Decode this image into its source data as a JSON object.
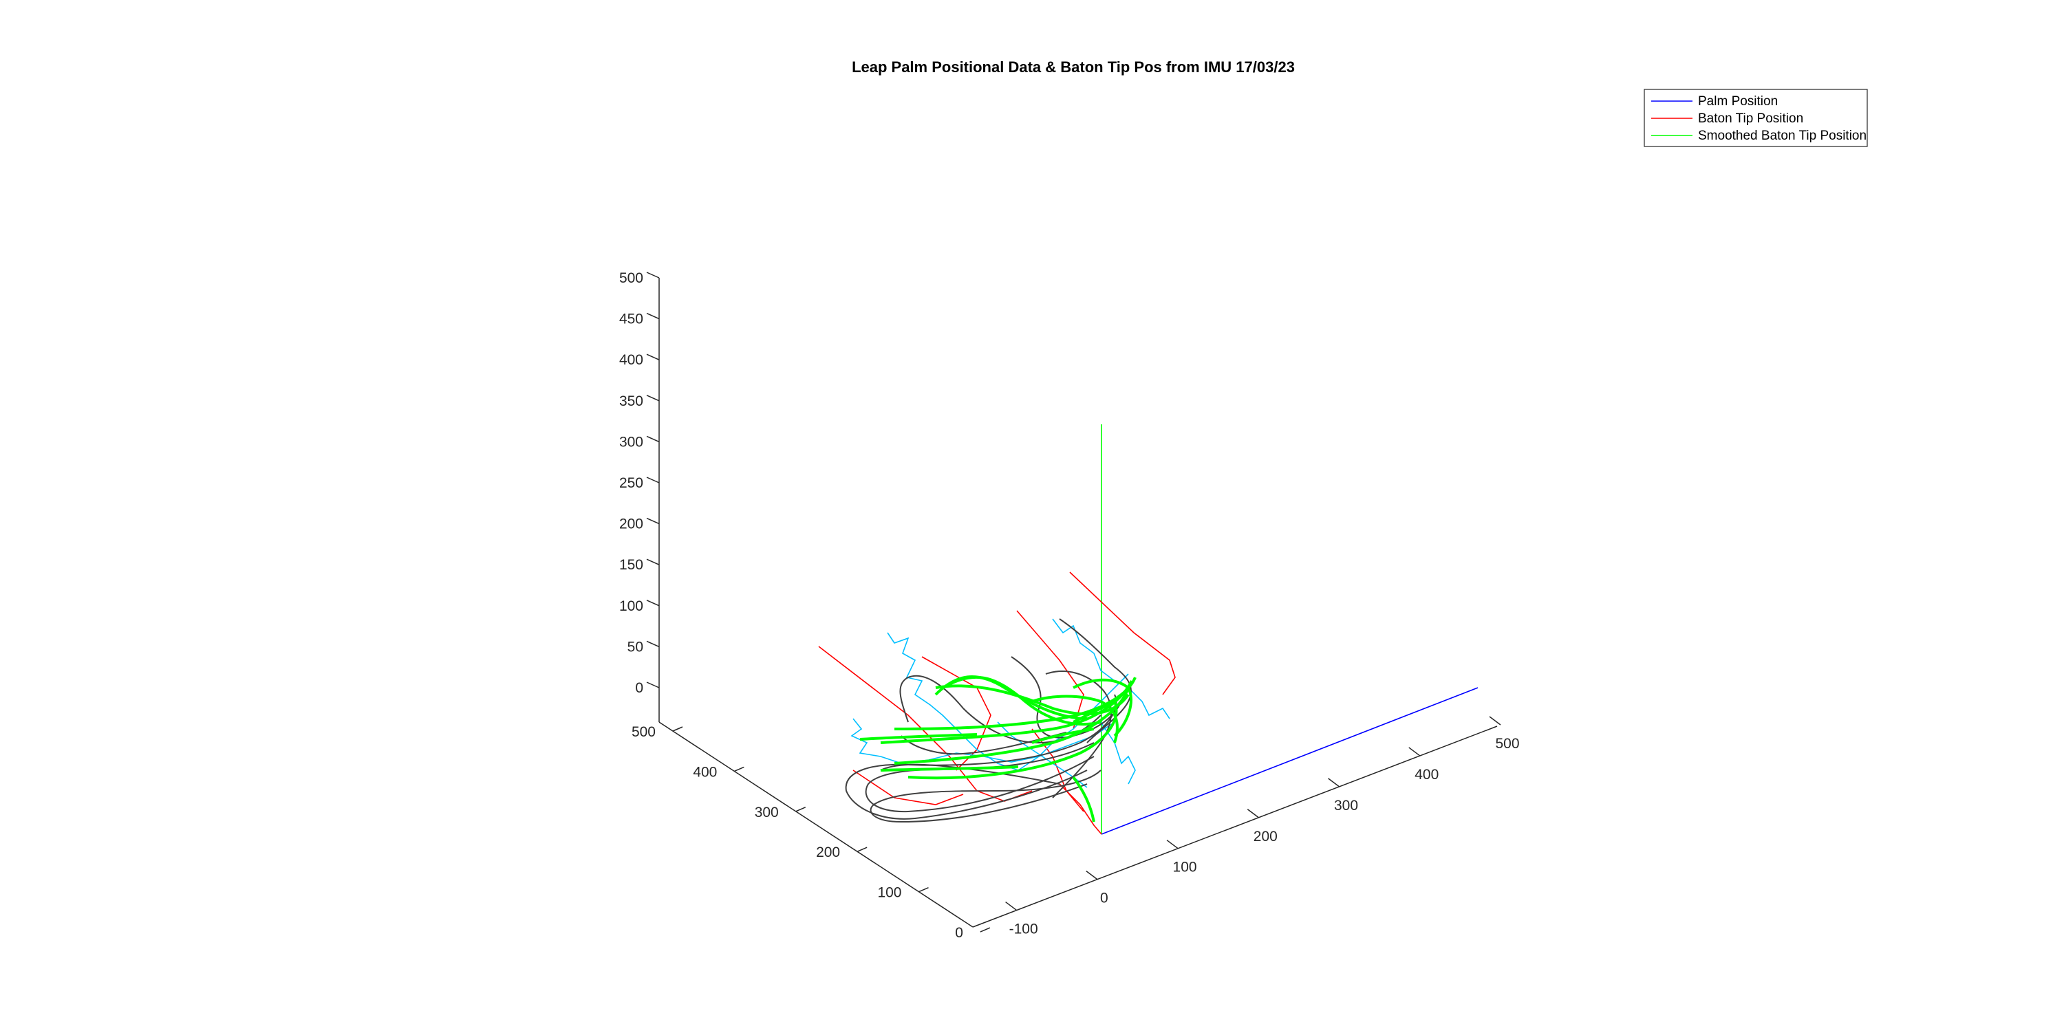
{
  "chart_data": {
    "type": "line3d",
    "title": "Leap Palm Positional Data & Baton Tip Pos from IMU 17/03/23",
    "xlabel": "",
    "ylabel": "",
    "zlabel": "",
    "xlim": [
      -150,
      500
    ],
    "ylim": [
      0,
      500
    ],
    "zlim": [
      0,
      500
    ],
    "x_ticks": [
      "-100",
      "0",
      "100",
      "200",
      "300",
      "400",
      "500"
    ],
    "y_ticks": [
      "0",
      "100",
      "200",
      "300",
      "400",
      "500"
    ],
    "z_ticks": [
      "0",
      "50",
      "100",
      "150",
      "200",
      "250",
      "300",
      "350",
      "400",
      "450",
      "500"
    ],
    "grid": false,
    "legend_position": "top-right",
    "series": [
      {
        "name": "Palm Position",
        "color": "#0000ff"
      },
      {
        "name": "Baton Tip Position",
        "color": "#ff0000"
      },
      {
        "name": "Smoothed Baton Tip Position",
        "color": "#00ff00"
      }
    ],
    "unlabeled_series_colors": [
      "#404040",
      "#00bfff"
    ]
  }
}
